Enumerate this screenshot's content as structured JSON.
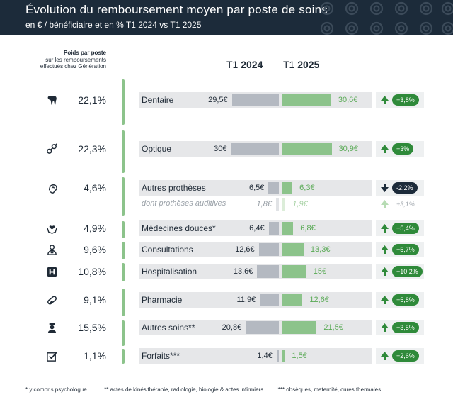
{
  "header": {
    "title": "Évolution du remboursement moyen par poste de soins",
    "subtitle": "en € / bénéficiaire et en % T1 2024 vs T1 2025"
  },
  "weights_header": {
    "line1": "Poids par poste",
    "line2": "sur les remboursements",
    "line3": "effectués chez Génération"
  },
  "columns": {
    "prefix": "T1",
    "year_2024": "2024",
    "year_2025": "2025"
  },
  "footnotes": {
    "note1": "*  y compris psychologue",
    "note2": "**  actes de kinésithérapie, radiologie, biologie & actes infirmiers",
    "note3": "***  obsèques, maternité, cures thermales"
  },
  "colors": {
    "t1_2024": "#b4b9c1",
    "t1_2025": "#8cc38b",
    "increase": "#2f8a3a",
    "decrease": "#1c2b3a",
    "header": "#1c2b3a"
  },
  "chart_data": {
    "type": "bar",
    "title": "Évolution du remboursement moyen par poste de soins",
    "subtitle": "en € / bénéficiaire et en % T1 2024 vs T1 2025",
    "unit": "€ / bénéficiaire",
    "series_names": [
      "T1 2024",
      "T1 2025"
    ],
    "rows": [
      {
        "icon": "tooth-icon",
        "weight": "22,1%",
        "label": "Dentaire",
        "t1_2024": 29.5,
        "t1_2025": 30.6,
        "v2024": "29,5€",
        "v2025": "30,6€",
        "change": "+3,8%",
        "direction": "up"
      },
      {
        "icon": "glasses-icon",
        "weight": "22,3%",
        "label": "Optique",
        "t1_2024": 30,
        "t1_2025": 30.9,
        "v2024": "30€",
        "v2025": "30,9€",
        "change": "+3%",
        "direction": "up"
      },
      {
        "icon": "ear-icon",
        "weight": "4,6%",
        "label": "Autres prothèses",
        "t1_2024": 6.5,
        "t1_2025": 6.3,
        "v2024": "6,5€",
        "v2025": "6,3€",
        "change": "-2,2%",
        "direction": "down"
      },
      {
        "icon": "",
        "weight": "",
        "label": "dont prothèses auditives",
        "t1_2024": 1.8,
        "t1_2025": 1.9,
        "v2024": "1,8€",
        "v2025": "1,9€",
        "change": "+3,1%",
        "direction": "up",
        "sub": true
      },
      {
        "icon": "hands-heart-icon",
        "weight": "4,9%",
        "label": "Médecines douces*",
        "t1_2024": 6.4,
        "t1_2025": 6.8,
        "v2024": "6,4€",
        "v2025": "6,8€",
        "change": "+5,4%",
        "direction": "up"
      },
      {
        "icon": "doctor-icon",
        "weight": "9,6%",
        "label": "Consultations",
        "t1_2024": 12.6,
        "t1_2025": 13.3,
        "v2024": "12,6€",
        "v2025": "13,3€",
        "change": "+5,7%",
        "direction": "up"
      },
      {
        "icon": "hospital-icon",
        "weight": "10,8%",
        "label": "Hospitalisation",
        "t1_2024": 13.6,
        "t1_2025": 15,
        "v2024": "13,6€",
        "v2025": "15€",
        "change": "+10,2%",
        "direction": "up"
      },
      {
        "icon": "pill-icon",
        "weight": "9,1%",
        "label": "Pharmacie",
        "t1_2024": 11.9,
        "t1_2025": 12.6,
        "v2024": "11,9€",
        "v2025": "12,6€",
        "change": "+5,8%",
        "direction": "up"
      },
      {
        "icon": "nurse-icon",
        "weight": "15,5%",
        "label": "Autres soins**",
        "t1_2024": 20.8,
        "t1_2025": 21.5,
        "v2024": "20,8€",
        "v2025": "21,5€",
        "change": "+3,5%",
        "direction": "up"
      },
      {
        "icon": "checkbox-icon",
        "weight": "1,1%",
        "label": "Forfaits***",
        "t1_2024": 1.4,
        "t1_2025": 1.5,
        "v2024": "1,4€",
        "v2025": "1,5€",
        "change": "+2,6%",
        "direction": "up"
      }
    ]
  }
}
